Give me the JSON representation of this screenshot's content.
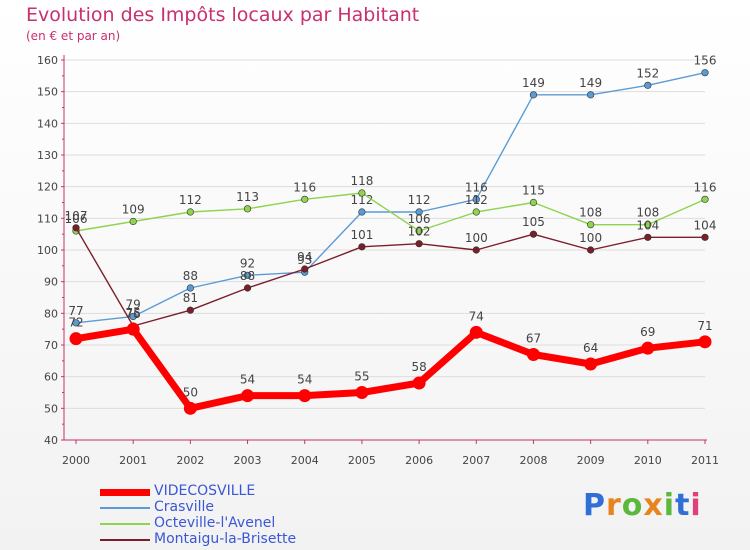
{
  "chart_data": {
    "type": "line",
    "title": "Evolution des Impôts locaux par Habitant",
    "subtitle": "(en € et par an)",
    "categories": [
      "2000",
      "2001",
      "2002",
      "2003",
      "2004",
      "2005",
      "2006",
      "2007",
      "2008",
      "2009",
      "2010",
      "2011"
    ],
    "ylim": [
      40,
      160
    ],
    "yticks": [
      40,
      50,
      60,
      70,
      80,
      90,
      100,
      110,
      120,
      130,
      140,
      150,
      160
    ],
    "xlabel": "",
    "ylabel": "",
    "legend_position": "bottom-left",
    "series": [
      {
        "name": "VIDECOSVILLE",
        "color": "#ff0000",
        "thick": true,
        "values": [
          72,
          75,
          50,
          54,
          54,
          55,
          58,
          74,
          67,
          64,
          69,
          71
        ]
      },
      {
        "name": "Crasville",
        "color": "#5b9bd5",
        "thick": false,
        "values": [
          77,
          79,
          88,
          92,
          93,
          112,
          112,
          116,
          149,
          149,
          152,
          156
        ]
      },
      {
        "name": "Octeville-l'Avenel",
        "color": "#8fd34f",
        "thick": false,
        "values": [
          106,
          109,
          112,
          113,
          116,
          118,
          106,
          112,
          115,
          108,
          108,
          116
        ]
      },
      {
        "name": "Montaigu-la-Brisette",
        "color": "#7a1e2a",
        "thick": false,
        "values": [
          107,
          76,
          81,
          88,
          94,
          101,
          102,
          100,
          105,
          100,
          104,
          104
        ]
      }
    ]
  },
  "brand": {
    "letters": [
      "P",
      "r",
      "o",
      "x",
      "i",
      "t",
      "i"
    ],
    "colors": [
      "#2f6fd6",
      "#e8841c",
      "#5cb83c",
      "#e8841c",
      "#5cb83c",
      "#2f6fd6",
      "#e0407a"
    ]
  }
}
